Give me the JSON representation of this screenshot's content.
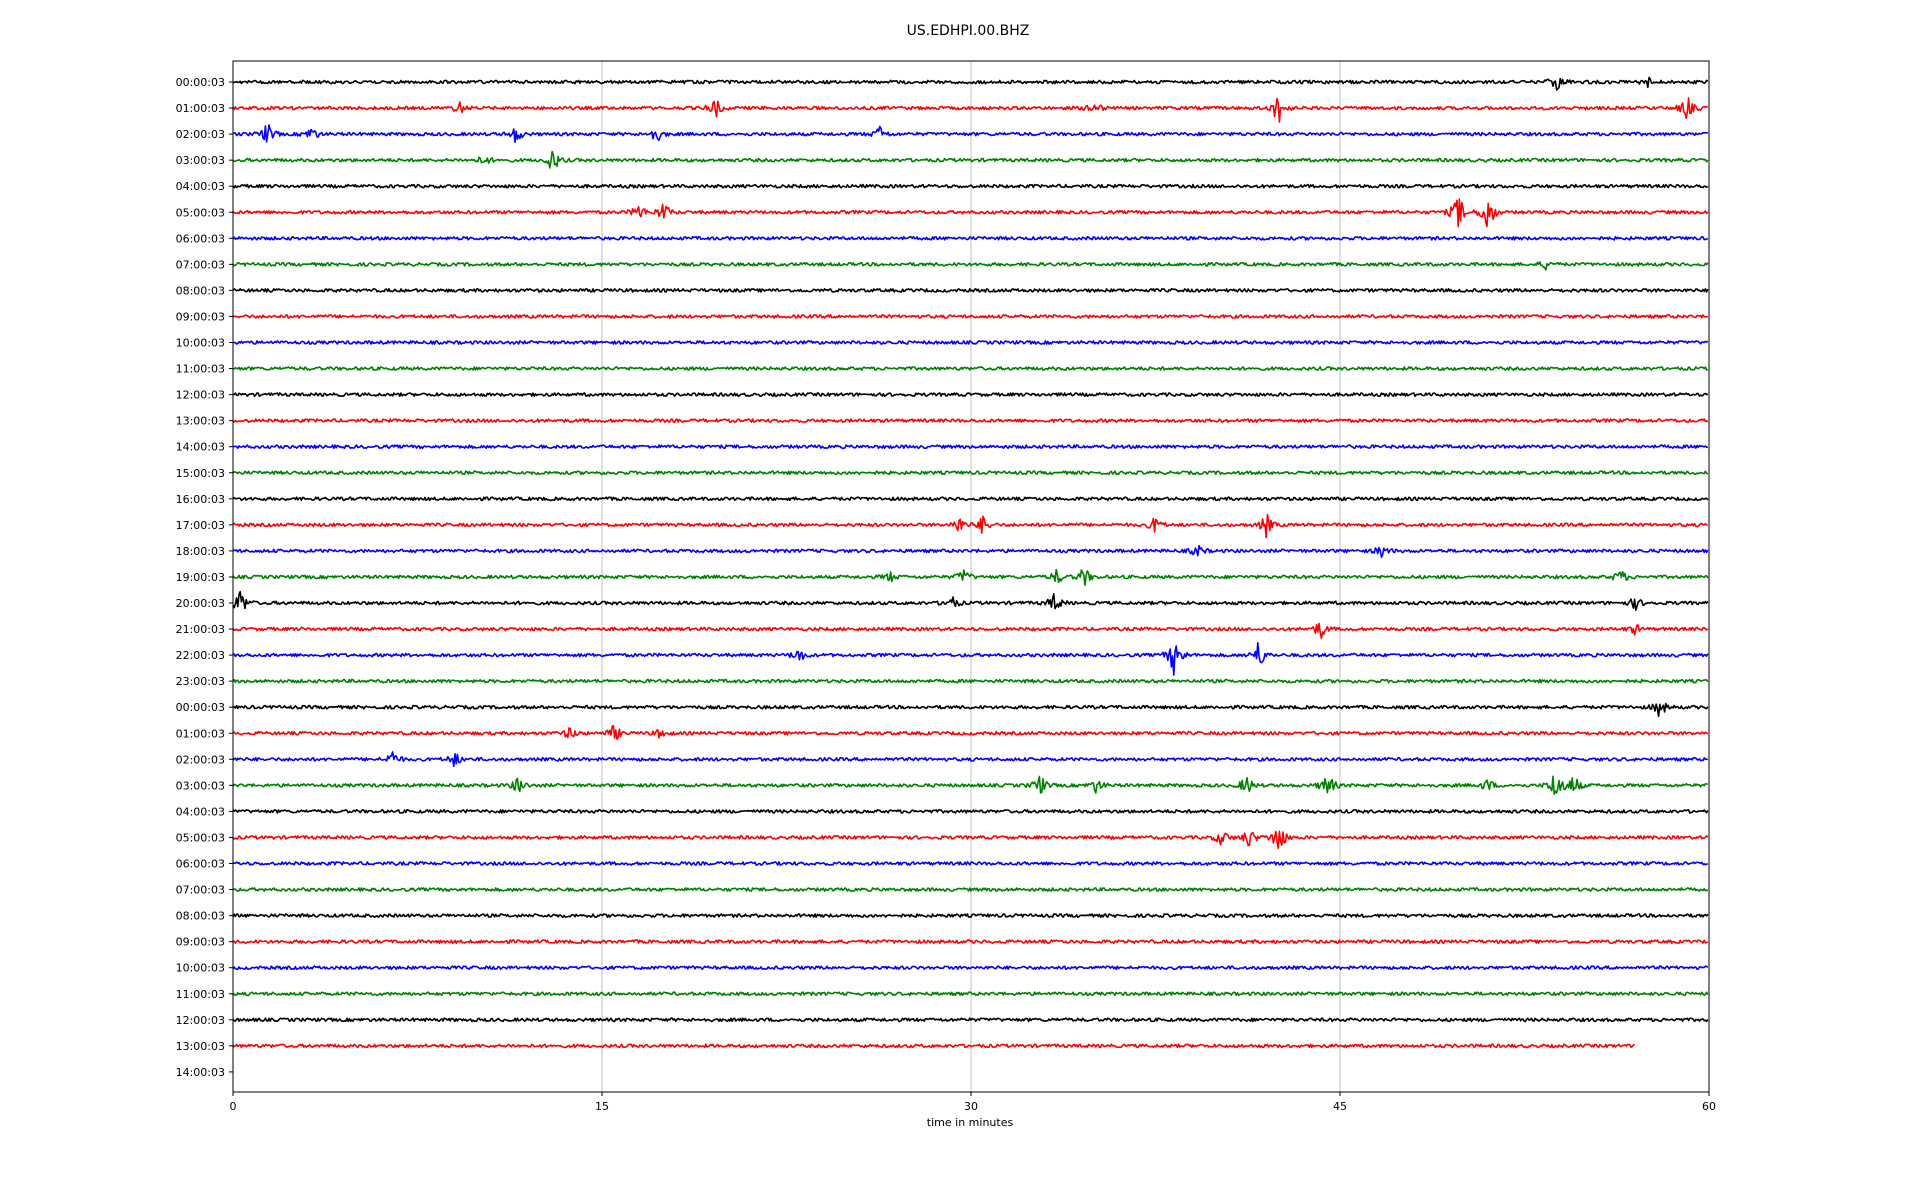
{
  "chart_data": {
    "type": "line",
    "title": "US.EDHPI.00.BHZ",
    "xlabel": "time in minutes",
    "ylabel": "",
    "xlim": [
      0,
      60
    ],
    "x_ticks": [
      "0",
      "15",
      "30",
      "45",
      "60"
    ],
    "grid": "vertical",
    "row_labels": [
      "00:00:03",
      "01:00:03",
      "02:00:03",
      "03:00:03",
      "04:00:03",
      "05:00:03",
      "06:00:03",
      "07:00:03",
      "08:00:03",
      "09:00:03",
      "10:00:03",
      "11:00:03",
      "12:00:03",
      "13:00:03",
      "14:00:03",
      "15:00:03",
      "16:00:03",
      "17:00:03",
      "18:00:03",
      "19:00:03",
      "20:00:03",
      "21:00:03",
      "22:00:03",
      "23:00:03",
      "00:00:03",
      "01:00:03",
      "02:00:03",
      "03:00:03",
      "04:00:03",
      "05:00:03",
      "06:00:03",
      "07:00:03",
      "08:00:03",
      "09:00:03",
      "10:00:03",
      "11:00:03",
      "12:00:03",
      "13:00:03",
      "14:00:03"
    ],
    "trace_colors": [
      "#000000",
      "#ff0000",
      "#0000ff",
      "#008000"
    ],
    "last_trace_end_minute": 57,
    "events": [
      {
        "row": 0,
        "t": 53.8,
        "amp": 0.35
      },
      {
        "row": 0,
        "t": 57.5,
        "amp": 0.2
      },
      {
        "row": 1,
        "t": 9.2,
        "amp": 0.25
      },
      {
        "row": 1,
        "t": 19.6,
        "amp": 0.4
      },
      {
        "row": 1,
        "t": 35.0,
        "amp": 0.3
      },
      {
        "row": 1,
        "t": 42.5,
        "amp": 0.7
      },
      {
        "row": 1,
        "t": 59.1,
        "amp": 0.5
      },
      {
        "row": 2,
        "t": 1.4,
        "amp": 0.45
      },
      {
        "row": 2,
        "t": 3.2,
        "amp": 0.3
      },
      {
        "row": 2,
        "t": 11.5,
        "amp": 0.35
      },
      {
        "row": 2,
        "t": 17.2,
        "amp": 0.35
      },
      {
        "row": 2,
        "t": 26.3,
        "amp": 0.3
      },
      {
        "row": 3,
        "t": 10.2,
        "amp": 0.2
      },
      {
        "row": 3,
        "t": 13.0,
        "amp": 0.5
      },
      {
        "row": 5,
        "t": 16.5,
        "amp": 0.35
      },
      {
        "row": 5,
        "t": 17.5,
        "amp": 0.4
      },
      {
        "row": 5,
        "t": 49.8,
        "amp": 0.8
      },
      {
        "row": 5,
        "t": 51.0,
        "amp": 0.9
      },
      {
        "row": 7,
        "t": 53.4,
        "amp": 0.2
      },
      {
        "row": 17,
        "t": 29.5,
        "amp": 0.35
      },
      {
        "row": 17,
        "t": 30.5,
        "amp": 0.4
      },
      {
        "row": 17,
        "t": 37.5,
        "amp": 0.35
      },
      {
        "row": 17,
        "t": 42.0,
        "amp": 0.45
      },
      {
        "row": 18,
        "t": 39.2,
        "amp": 0.25
      },
      {
        "row": 18,
        "t": 46.7,
        "amp": 0.25
      },
      {
        "row": 19,
        "t": 26.7,
        "amp": 0.2
      },
      {
        "row": 19,
        "t": 29.7,
        "amp": 0.3
      },
      {
        "row": 19,
        "t": 33.5,
        "amp": 0.3
      },
      {
        "row": 19,
        "t": 34.6,
        "amp": 0.4
      },
      {
        "row": 19,
        "t": 56.4,
        "amp": 0.3
      },
      {
        "row": 20,
        "t": 0.3,
        "amp": 0.6
      },
      {
        "row": 20,
        "t": 29.2,
        "amp": 0.3
      },
      {
        "row": 20,
        "t": 33.4,
        "amp": 0.4
      },
      {
        "row": 20,
        "t": 57.0,
        "amp": 0.25
      },
      {
        "row": 21,
        "t": 44.2,
        "amp": 0.4
      },
      {
        "row": 21,
        "t": 57.0,
        "amp": 0.2
      },
      {
        "row": 22,
        "t": 23.0,
        "amp": 0.3
      },
      {
        "row": 22,
        "t": 38.3,
        "amp": 1.0
      },
      {
        "row": 22,
        "t": 41.7,
        "amp": 0.6
      },
      {
        "row": 24,
        "t": 58.0,
        "amp": 0.4
      },
      {
        "row": 25,
        "t": 13.7,
        "amp": 0.25
      },
      {
        "row": 25,
        "t": 15.5,
        "amp": 0.35
      },
      {
        "row": 25,
        "t": 17.4,
        "amp": 0.2
      },
      {
        "row": 26,
        "t": 6.5,
        "amp": 0.35
      },
      {
        "row": 26,
        "t": 9.0,
        "amp": 0.3
      },
      {
        "row": 27,
        "t": 11.6,
        "amp": 0.35
      },
      {
        "row": 27,
        "t": 32.8,
        "amp": 0.45
      },
      {
        "row": 27,
        "t": 35.1,
        "amp": 0.3
      },
      {
        "row": 27,
        "t": 41.2,
        "amp": 0.4
      },
      {
        "row": 27,
        "t": 44.5,
        "amp": 0.55
      },
      {
        "row": 27,
        "t": 51.0,
        "amp": 0.25
      },
      {
        "row": 27,
        "t": 53.8,
        "amp": 0.85
      },
      {
        "row": 27,
        "t": 54.5,
        "amp": 0.45
      },
      {
        "row": 29,
        "t": 40.2,
        "amp": 0.35
      },
      {
        "row": 29,
        "t": 41.3,
        "amp": 0.4
      },
      {
        "row": 29,
        "t": 42.5,
        "amp": 0.75
      }
    ]
  }
}
